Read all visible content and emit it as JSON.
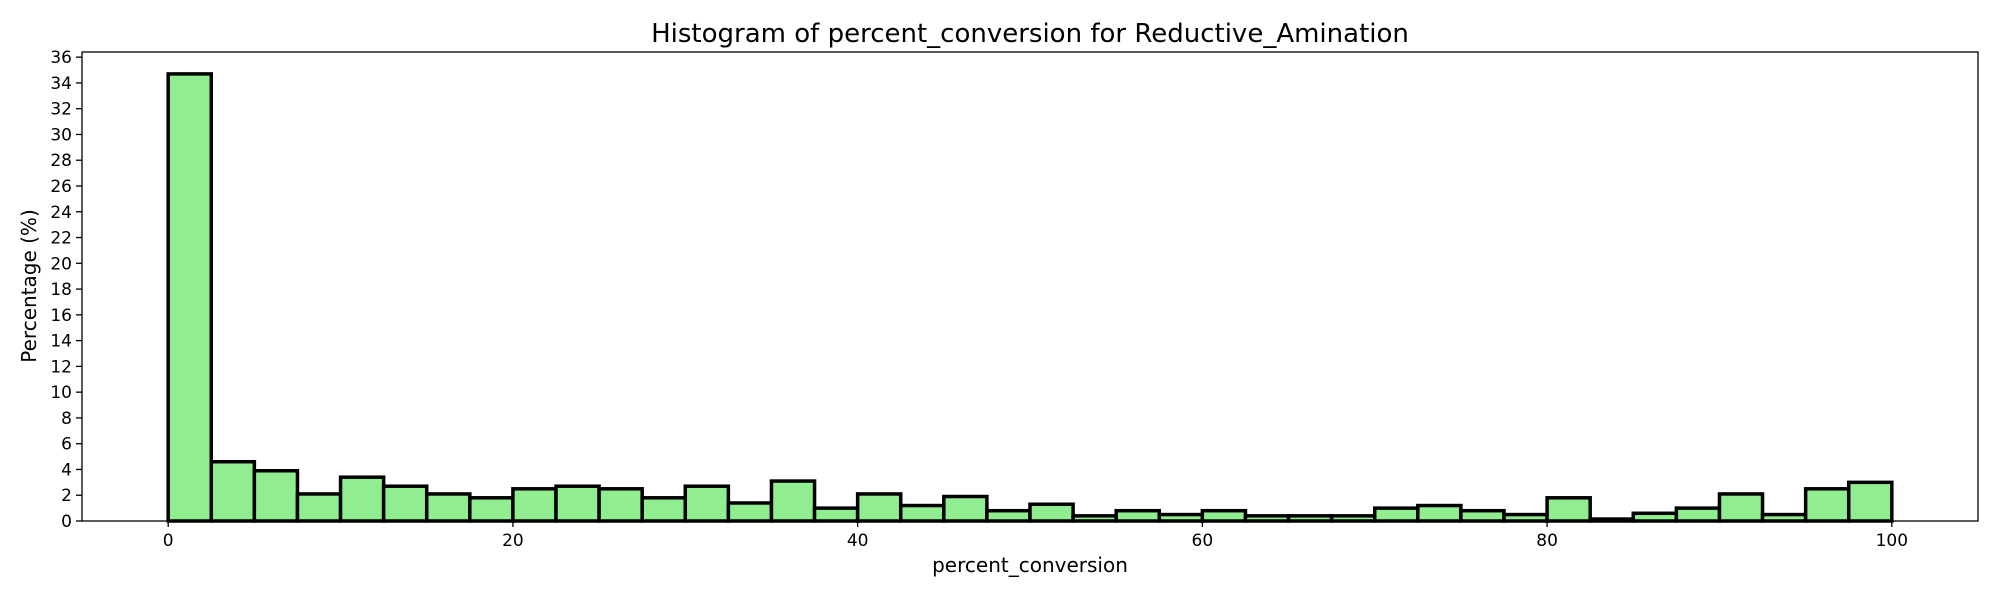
{
  "chart_data": {
    "type": "bar",
    "title": "Histogram of percent_conversion for Reductive_Amination",
    "xlabel": "percent_conversion",
    "ylabel": "Percentage (%)",
    "xlim": [
      -5,
      105
    ],
    "ylim": [
      0,
      36.4
    ],
    "xticks": [
      0,
      20,
      40,
      60,
      80,
      100
    ],
    "yticks": [
      0,
      2,
      4,
      6,
      8,
      10,
      12,
      14,
      16,
      18,
      20,
      22,
      24,
      26,
      28,
      30,
      32,
      34,
      36
    ],
    "bin_width": 2.5,
    "bin_start": 0,
    "bins": 40,
    "values": [
      34.7,
      4.6,
      3.9,
      2.1,
      3.4,
      2.7,
      2.1,
      1.8,
      2.5,
      2.7,
      2.5,
      1.8,
      2.7,
      1.4,
      3.1,
      1.0,
      2.1,
      1.2,
      1.9,
      0.8,
      1.3,
      0.4,
      0.8,
      0.5,
      0.8,
      0.4,
      0.4,
      0.4,
      1.0,
      1.2,
      0.8,
      0.5,
      1.8,
      0.15,
      0.6,
      1.0,
      2.1,
      0.5,
      2.5,
      3.0
    ],
    "bar_color": "#90ee90",
    "edge_color": "#000000",
    "grid": false,
    "legend": "none"
  }
}
